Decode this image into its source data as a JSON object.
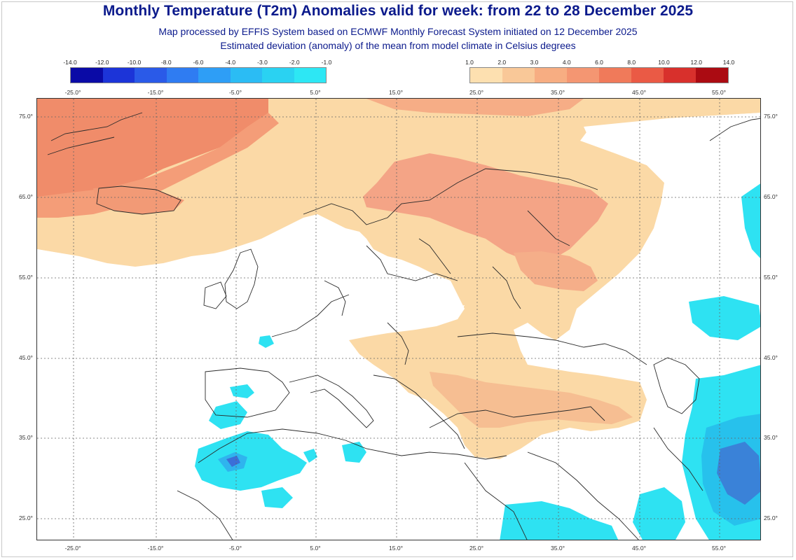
{
  "title": "Monthly Temperature (T2m) Anomalies valid for week: from 22 to 28 December 2025",
  "subtitle_line1": "Map processed by EFFIS System based on ECMWF Monthly Forecast System initiated on 12 December 2025",
  "subtitle_line2": "Estimated deviation (anomaly) of the mean from model climate in Celsius degrees",
  "legend_negative": {
    "ticks": [
      "-14.0",
      "-12.0",
      "-10.0",
      "-8.0",
      "-6.0",
      "-4.0",
      "-3.0",
      "-2.0",
      "-1.0"
    ],
    "colors": [
      "#0a0aa6",
      "#1c34d8",
      "#2a5ae8",
      "#2f7cf2",
      "#2e9ef6",
      "#2bbcf4",
      "#2ad2f2",
      "#2de7f4"
    ]
  },
  "legend_positive": {
    "ticks": [
      "1.0",
      "2.0",
      "3.0",
      "4.0",
      "6.0",
      "8.0",
      "10.0",
      "12.0",
      "14.0"
    ],
    "colors": [
      "#fde0b0",
      "#f9c898",
      "#f7ad82",
      "#f49672",
      "#f07a5a",
      "#ea5a45",
      "#d8302c",
      "#ab0b12"
    ]
  },
  "longitude_labels": [
    "-25.0°",
    "-15.0°",
    "-5.0°",
    "5.0°",
    "15.0°",
    "25.0°",
    "35.0°",
    "45.0°",
    "55.0°"
  ],
  "latitude_labels": [
    "75.0°",
    "65.0°",
    "55.0°",
    "45.0°",
    "35.0°",
    "25.0°"
  ],
  "colors": {
    "title": "#0b1a8c",
    "ocean_land_neutral": "#ffffff",
    "warm_light": "#fbd9a6",
    "warm_mid": "#f4a888",
    "warm_strong": "#ef7f63",
    "cool_light": "#2de4f2",
    "cool_mid": "#24c4ee",
    "cool_strong": "#3b7fd8",
    "coastline": "#2a2a2a",
    "gridline": "#666666"
  }
}
